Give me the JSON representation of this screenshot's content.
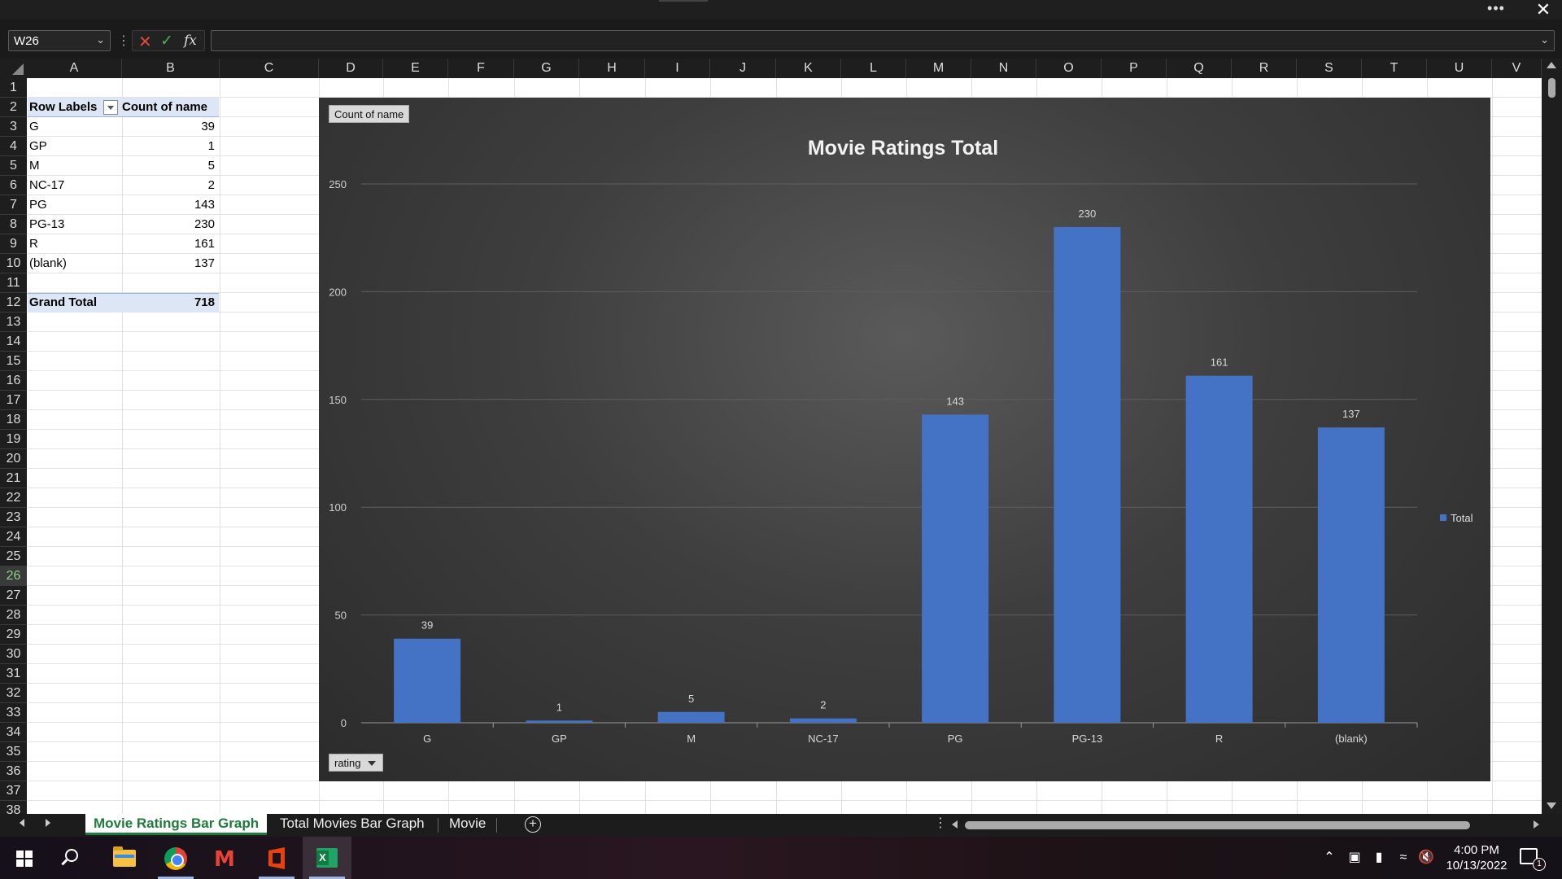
{
  "window": {
    "more_label": "•••",
    "close_label": "✕"
  },
  "formula_bar": {
    "name_box": "W26",
    "formula": "",
    "cancel_icon": "close-icon",
    "enter_icon": "check-icon",
    "fx_label": "fx"
  },
  "grid": {
    "columns": [
      "A",
      "B",
      "C",
      "D",
      "E",
      "F",
      "G",
      "H",
      "I",
      "J",
      "K",
      "L",
      "M",
      "N",
      "O",
      "P",
      "Q",
      "R",
      "S",
      "T",
      "U",
      "V"
    ],
    "rows": [
      "1",
      "2",
      "3",
      "4",
      "5",
      "6",
      "7",
      "8",
      "9",
      "10",
      "11",
      "12",
      "13",
      "14",
      "15",
      "16",
      "17",
      "18",
      "19",
      "20",
      "21",
      "22",
      "23",
      "24",
      "25",
      "26",
      "27",
      "28",
      "29",
      "30",
      "31",
      "32",
      "33",
      "34",
      "35",
      "36",
      "37",
      "38"
    ],
    "selected_row": "26"
  },
  "pivot": {
    "header": {
      "row_labels": "Row Labels",
      "count": "Count of name"
    },
    "rows": [
      {
        "label": "G",
        "value": "39"
      },
      {
        "label": "GP",
        "value": "1"
      },
      {
        "label": "M",
        "value": "5"
      },
      {
        "label": "NC-17",
        "value": "2"
      },
      {
        "label": "PG",
        "value": "143"
      },
      {
        "label": "PG-13",
        "value": "230"
      },
      {
        "label": "R",
        "value": "161"
      },
      {
        "label": "(blank)",
        "value": "137"
      }
    ],
    "total": {
      "label": "Grand Total",
      "value": "718"
    }
  },
  "chart_data": {
    "type": "bar",
    "title": "Movie Ratings Total",
    "categories": [
      "G",
      "GP",
      "M",
      "NC-17",
      "PG",
      "PG-13",
      "R",
      "(blank)"
    ],
    "series": [
      {
        "name": "Total",
        "values": [
          39,
          1,
          5,
          2,
          143,
          230,
          161,
          137
        ],
        "color": "#4472c4"
      }
    ],
    "ylim": [
      0,
      250
    ],
    "yticks": [
      0,
      50,
      100,
      150,
      200,
      250
    ],
    "grid": true,
    "legend": "right",
    "field_buttons": {
      "value_field": "Count of name",
      "axis_field": "rating"
    }
  },
  "sheet_tabs": [
    {
      "label": "Movie Ratings Bar Graph",
      "active": true
    },
    {
      "label": "Total Movies Bar Graph",
      "active": false
    },
    {
      "label": "Movie",
      "active": false
    }
  ],
  "add_sheet_label": "+",
  "taskbar": {
    "apps": [
      "windows-start",
      "search",
      "file-explorer",
      "chrome",
      "gmail",
      "office",
      "excel"
    ],
    "time": "4:00 PM",
    "date": "10/13/2022",
    "notification_count": "1",
    "gmail_glyph": "M",
    "excel_glyph": "X"
  }
}
